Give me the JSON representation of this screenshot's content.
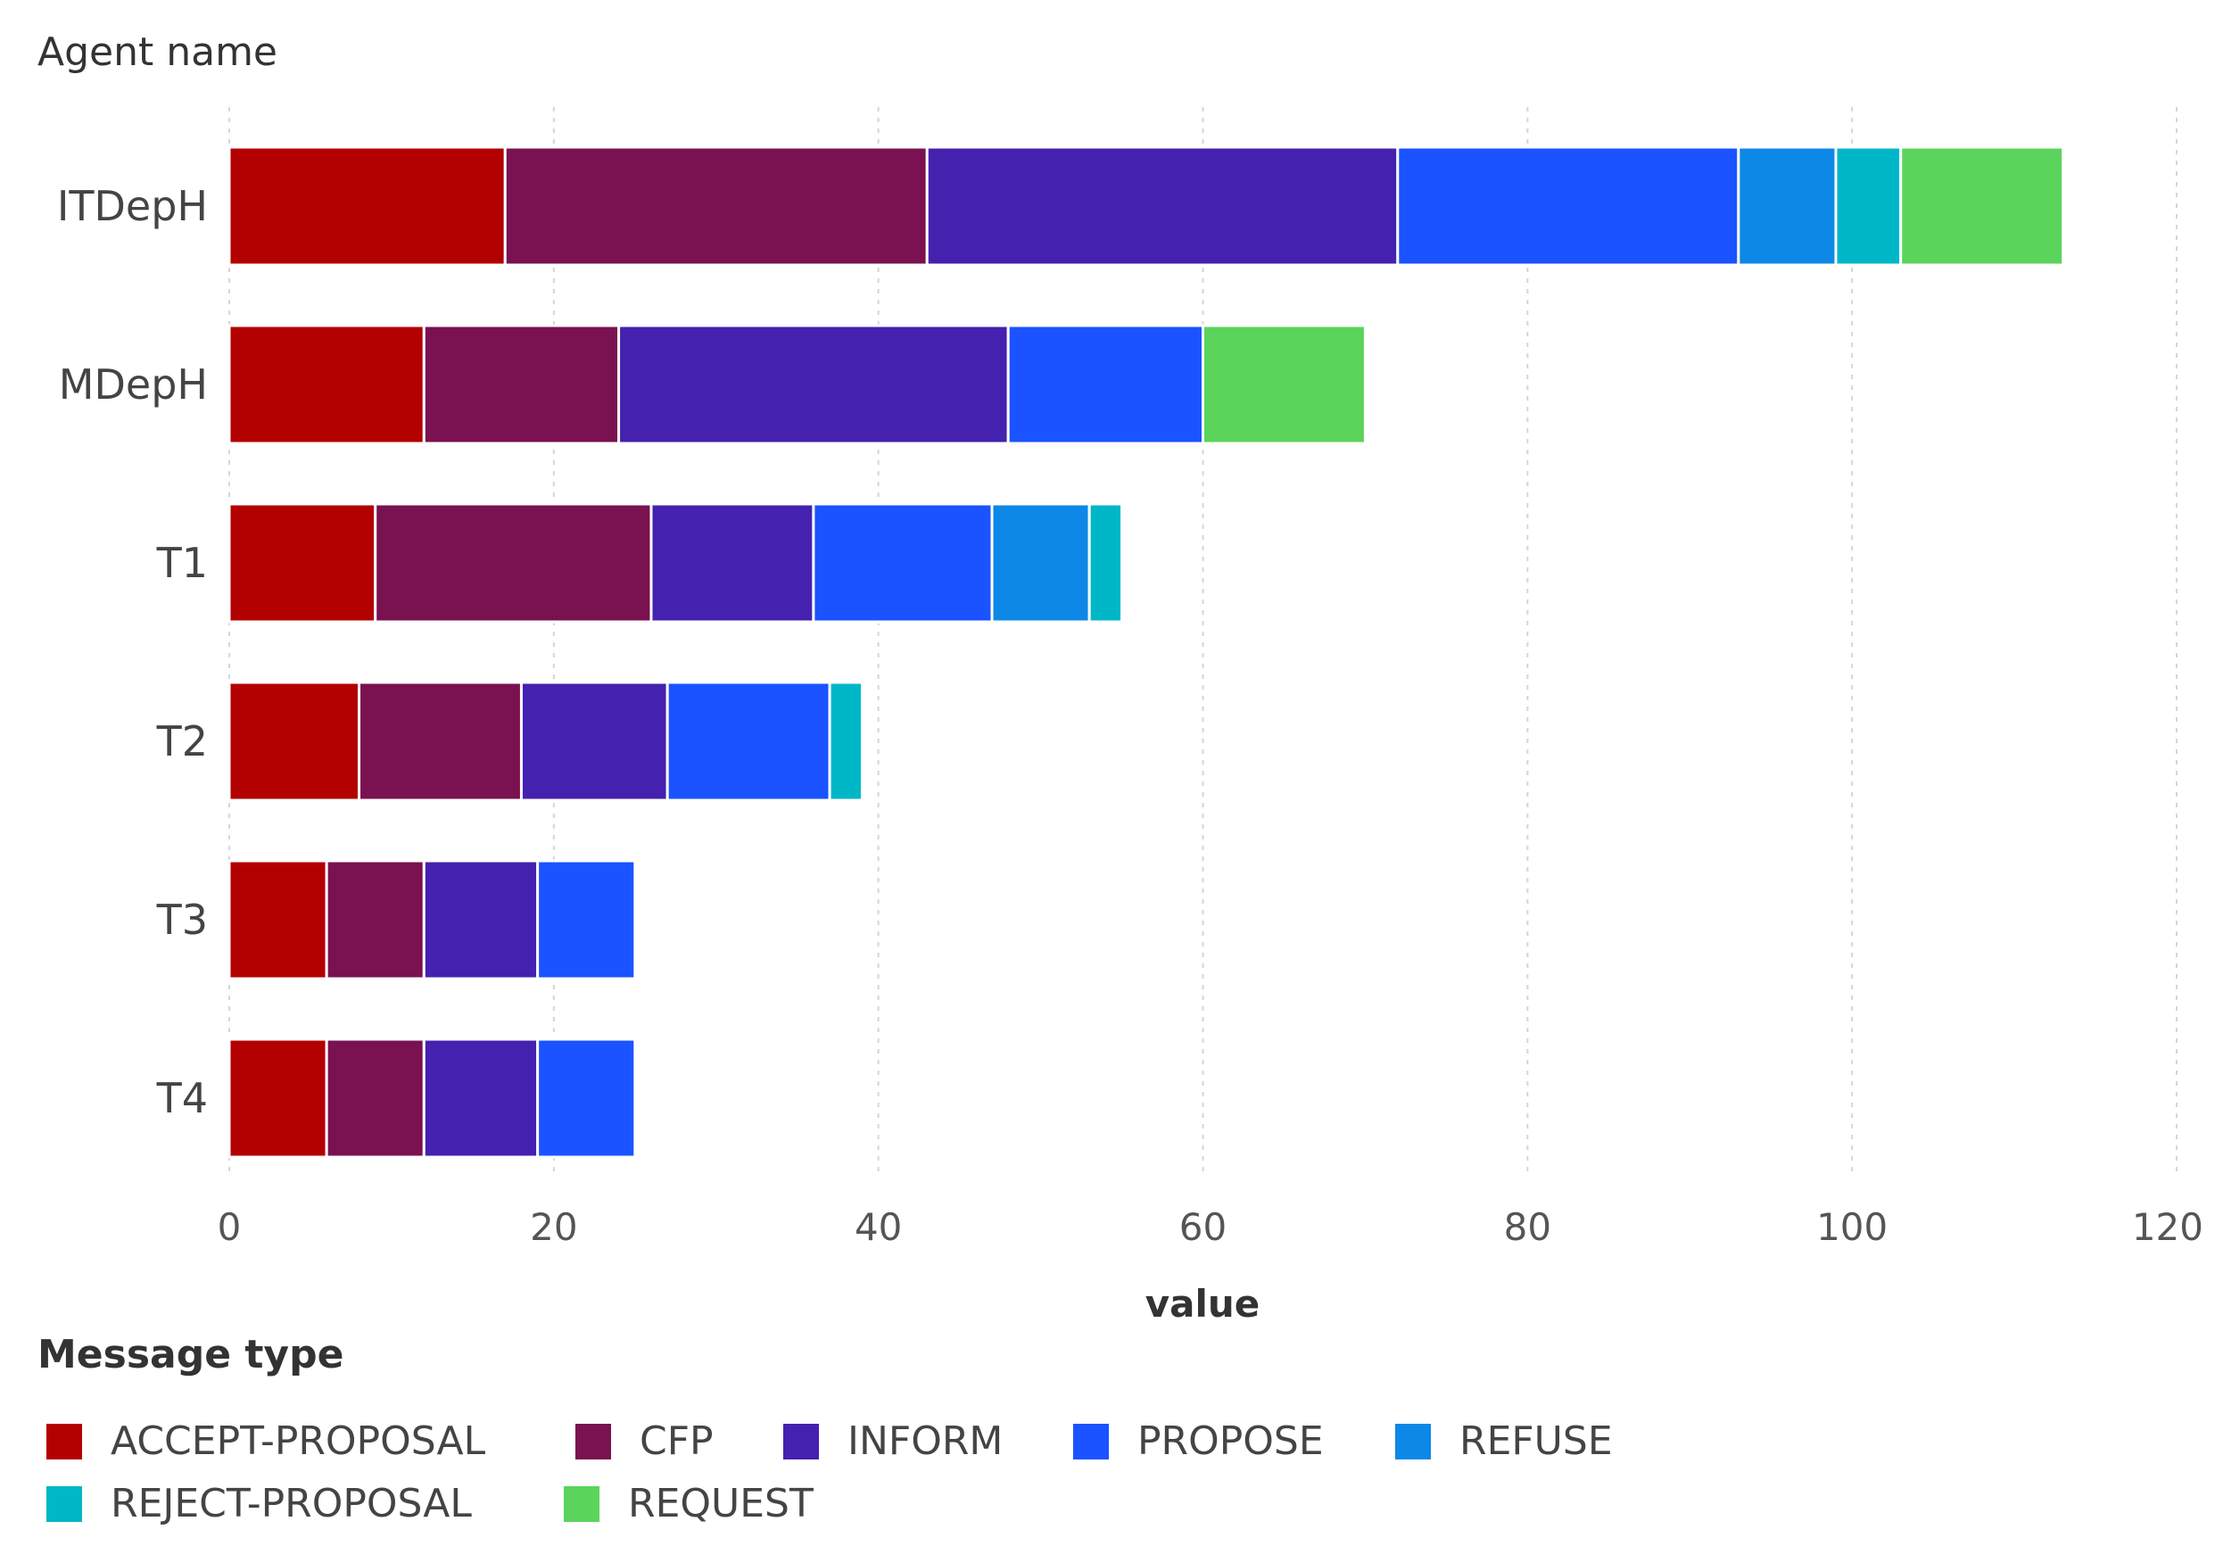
{
  "chart_data": {
    "type": "bar",
    "orientation": "horizontal",
    "stacked": true,
    "y_axis_title": "Agent name",
    "xlabel": "value",
    "categories": [
      "ITDepH",
      "MDepH",
      "T1",
      "T2",
      "T3",
      "T4"
    ],
    "xlim": [
      0,
      120
    ],
    "x_ticks": [
      0,
      20,
      40,
      60,
      80,
      100,
      120
    ],
    "grid": true,
    "legend_title": "Message type",
    "legend_position": "bottom",
    "series": [
      {
        "name": "ACCEPT-PROPOSAL",
        "color": "#b30000",
        "values": [
          17,
          12,
          9,
          8,
          6,
          6
        ]
      },
      {
        "name": "CFP",
        "color": "#7a1150",
        "values": [
          26,
          12,
          17,
          10,
          6,
          6
        ]
      },
      {
        "name": "INFORM",
        "color": "#4421af",
        "values": [
          29,
          24,
          10,
          9,
          7,
          7
        ]
      },
      {
        "name": "PROPOSE",
        "color": "#1a53ff",
        "values": [
          21,
          12,
          11,
          10,
          6,
          6
        ]
      },
      {
        "name": "REFUSE",
        "color": "#0d88e6",
        "values": [
          6,
          0,
          6,
          0,
          0,
          0
        ]
      },
      {
        "name": "REJECT-PROPOSAL",
        "color": "#00b7c7",
        "values": [
          4,
          0,
          2,
          2,
          0,
          0
        ]
      },
      {
        "name": "REQUEST",
        "color": "#5ad45a",
        "values": [
          10,
          10,
          0,
          0,
          0,
          0
        ]
      }
    ]
  }
}
